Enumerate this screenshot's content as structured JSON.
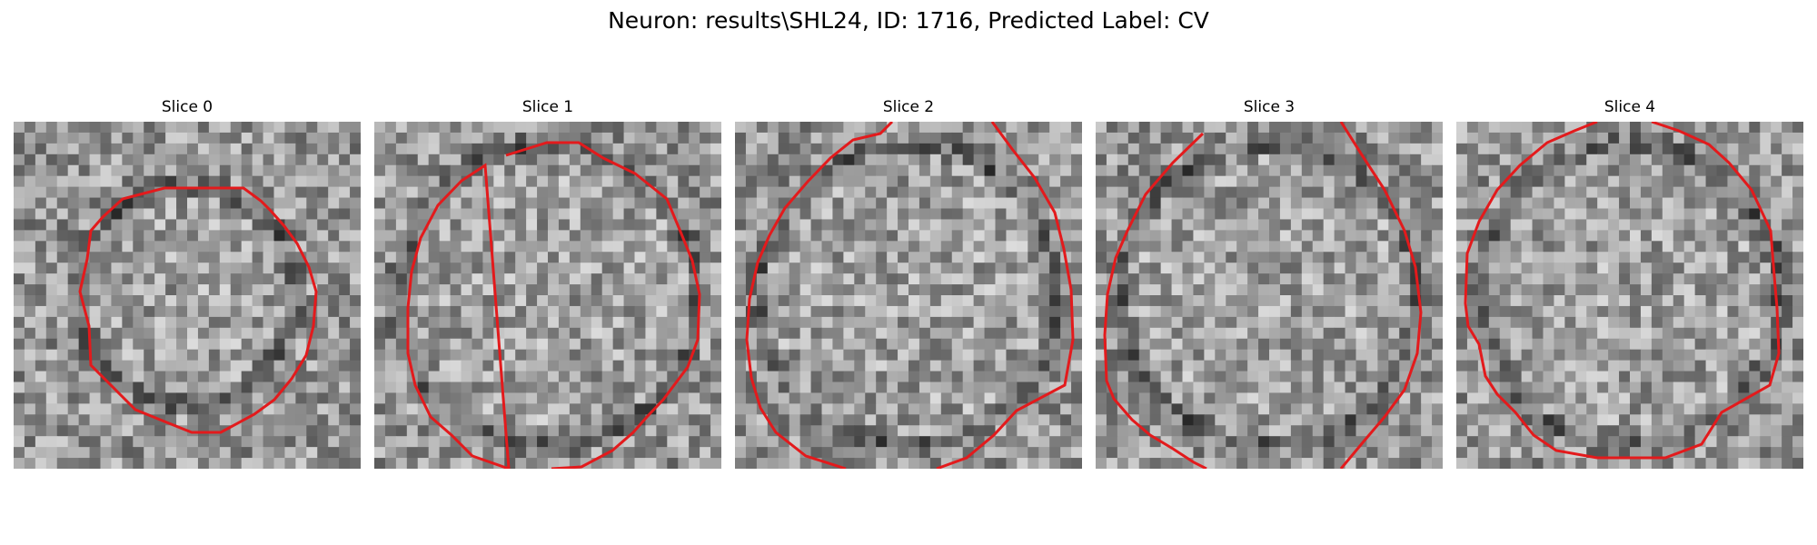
{
  "figure": {
    "title": "Neuron: results\\SHL24, ID: 1716, Predicted Label: CV"
  },
  "slices": [
    {
      "label": "Slice 0"
    },
    {
      "label": "Slice 1"
    },
    {
      "label": "Slice 2"
    },
    {
      "label": "Slice 3"
    },
    {
      "label": "Slice 4"
    }
  ],
  "colors": {
    "contour": "#e31a1c"
  }
}
